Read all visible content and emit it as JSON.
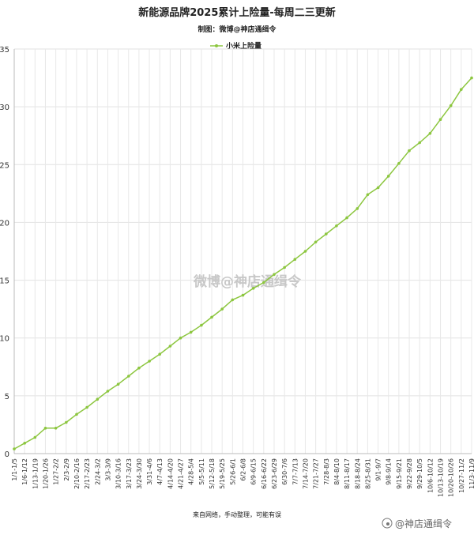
{
  "chart_data": {
    "type": "line",
    "title": "新能源品牌2025累计上险量-每周二三更新",
    "subtitle": "制图：微博@神店通缉令",
    "ylim": [
      0,
      35
    ],
    "yticks": [
      0,
      5,
      10,
      15,
      20,
      25,
      30,
      35
    ],
    "grid": true,
    "legend_position": "top-center",
    "categories": [
      "1/1-1/5",
      "1/6-1/12",
      "1/13-1/19",
      "1/20-1/26",
      "1/27-2/2",
      "2/3-2/9",
      "2/10-2/16",
      "2/17-2/23",
      "2/24-3/2",
      "3/3-3/9",
      "3/10-3/16",
      "3/17-3/23",
      "3/24-3/30",
      "3/31-4/6",
      "4/7-4/13",
      "4/14-4/20",
      "4/21-4/27",
      "4/28-5/4",
      "5/5-5/11",
      "5/12-5/18",
      "5/19-5/25",
      "5/26-6/1",
      "6/2-6/8",
      "6/9-6/15",
      "6/16-6/22",
      "6/23-6/29",
      "6/30-7/6",
      "7/7-7/13",
      "7/14-7/20",
      "7/21-7/27",
      "7/28-8/3",
      "8/4-8/10",
      "8/11-8/17",
      "8/18-8/24",
      "8/25-8/31",
      "9/1-9/7",
      "9/8-9/14",
      "9/15-9/21",
      "9/22-9/28",
      "9/29-10/5",
      "10/6-10/12",
      "10/13-10/19",
      "10/20-10/26",
      "10/27-11/2",
      "11/3-11/9"
    ],
    "series": [
      {
        "name": "小米上险量",
        "color": "#8cc63f",
        "values": [
          0.4,
          0.9,
          1.4,
          2.2,
          2.2,
          2.7,
          3.4,
          4.0,
          4.7,
          5.4,
          6.0,
          6.7,
          7.4,
          8.0,
          8.6,
          9.3,
          10.0,
          10.5,
          11.1,
          11.8,
          12.5,
          13.3,
          13.7,
          14.3,
          14.8,
          15.5,
          16.1,
          16.8,
          17.5,
          18.3,
          19.0,
          19.7,
          20.4,
          21.2,
          22.4,
          23.0,
          24.0,
          25.1,
          26.2,
          26.9,
          27.7,
          28.9,
          30.1,
          31.5,
          32.5
        ]
      }
    ]
  },
  "watermark": "微博@神店通缉令",
  "footer": "来自网络，手动整理，可能有误",
  "corner_mark": "@神店通缉令"
}
